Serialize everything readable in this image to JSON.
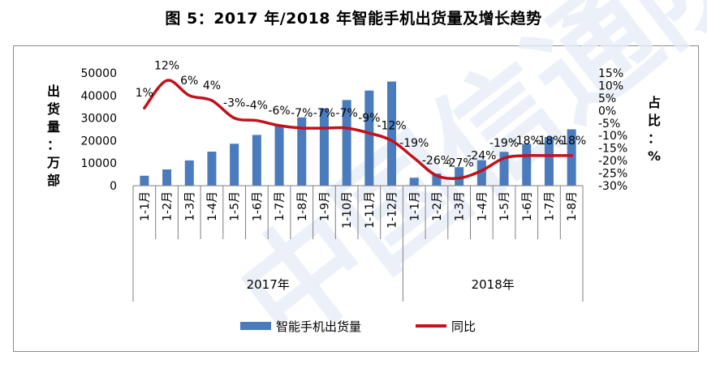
{
  "title": "图 5：2017 年/2018 年智能手机出货量及增长趋势",
  "watermark": "中国信通院",
  "chart_data": {
    "type": "bar",
    "categories": [
      "1-1月",
      "1-2月",
      "1-3月",
      "1-4月",
      "1-5月",
      "1-6月",
      "1-7月",
      "1-8月",
      "1-9月",
      "1-10月",
      "1-11月",
      "1-12月",
      "1-1月",
      "1-2月",
      "1-3月",
      "1-4月",
      "1-5月",
      "1-6月",
      "1-7月",
      "1-8月"
    ],
    "groups": [
      {
        "label": "2017年",
        "count": 12
      },
      {
        "label": "2018年",
        "count": 8
      }
    ],
    "series": [
      {
        "name": "智能手机出货量",
        "type": "bar",
        "axis": "left",
        "color": "#4a7bbd",
        "values": [
          4400,
          7200,
          11200,
          15100,
          18600,
          22500,
          26500,
          30300,
          34300,
          38000,
          42200,
          46200,
          3500,
          5400,
          8200,
          11300,
          15000,
          18500,
          21600,
          25000
        ]
      },
      {
        "name": "同比",
        "type": "line",
        "axis": "right",
        "color": "#c0131b",
        "values": [
          1,
          12,
          6,
          4,
          -3,
          -4,
          -6,
          -7,
          -7,
          -7,
          -9,
          -12,
          -19,
          -26,
          -27,
          -24,
          -19,
          -18,
          -18,
          -18
        ],
        "labels": [
          "1%",
          "12%",
          "6%",
          "4%",
          "-3%",
          "-4%",
          "-6%",
          "-7%",
          "-7%",
          "-7%",
          "-9%",
          "-12%",
          "-19%",
          "-26%",
          "-27%",
          "-24%",
          "-19%",
          "-18%",
          "-18%",
          "-18%"
        ]
      }
    ],
    "yleft": {
      "label": "出货量：万部",
      "ticks": [
        0,
        10000,
        20000,
        30000,
        40000,
        50000
      ],
      "ylim": [
        0,
        50000
      ]
    },
    "yright": {
      "label": "占比：%",
      "tick_labels": [
        "15%",
        "10%",
        "5%",
        "0%",
        "-5%",
        "-10%",
        "-15%",
        "-20%",
        "-25%",
        "-30%"
      ],
      "ylim": [
        -30,
        15
      ]
    },
    "legend_position": "bottom"
  }
}
